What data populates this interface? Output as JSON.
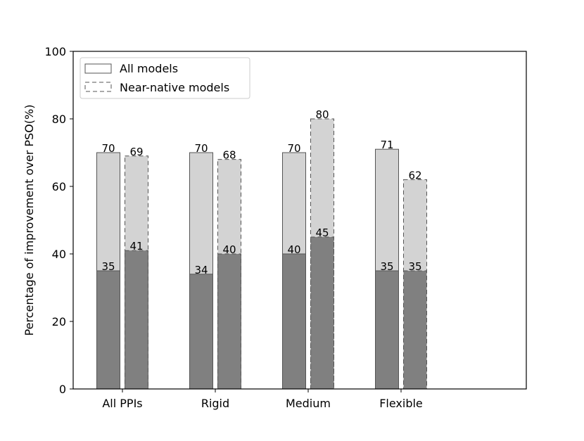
{
  "chart_data": {
    "type": "bar",
    "title": "",
    "xlabel": "",
    "ylabel": "Percentage of improvement over PSO(%)",
    "ylim": [
      0,
      100
    ],
    "yticks": [
      0,
      20,
      40,
      60,
      80,
      100
    ],
    "categories": [
      "All PPIs",
      "Rigid",
      "Medium",
      "Flexible"
    ],
    "series": [
      {
        "name": "All models",
        "style": "solid",
        "outer_values": [
          70,
          70,
          70,
          71
        ],
        "inner_values": [
          35,
          34,
          40,
          35
        ]
      },
      {
        "name": "Near-native models",
        "style": "dashed",
        "outer_values": [
          69,
          68,
          80,
          62
        ],
        "inner_values": [
          41,
          40,
          45,
          35
        ]
      }
    ],
    "legend_position": "top-left",
    "grid": false,
    "colors": {
      "outer_fill": "#d3d3d3",
      "inner_fill": "#808080",
      "edge": "#555555"
    }
  }
}
